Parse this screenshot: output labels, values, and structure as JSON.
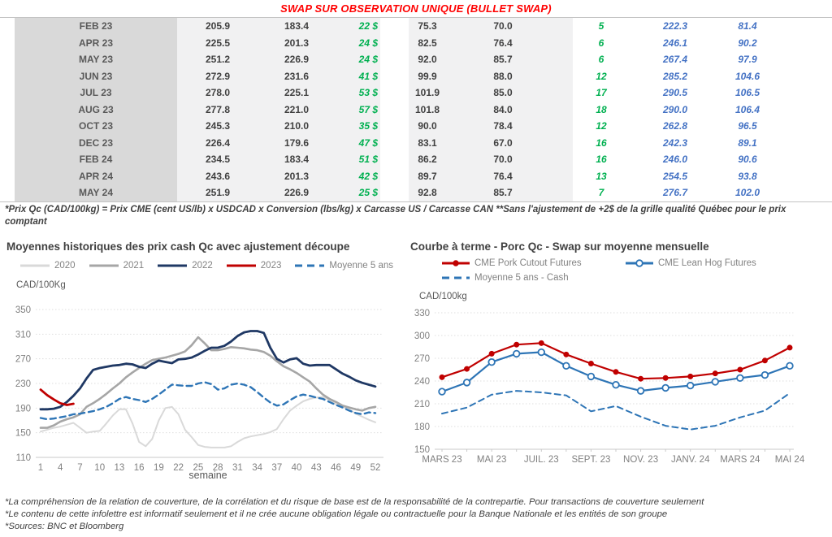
{
  "header": {
    "title": "SWAP SUR OBSERVATION UNIQUE (BULLET SWAP)"
  },
  "table": {
    "rows": [
      [
        "FEB 23",
        "205.9",
        "183.4",
        "22 $",
        "75.3",
        "70.0",
        "5",
        "222.3",
        "81.4"
      ],
      [
        "APR 23",
        "225.5",
        "201.3",
        "24 $",
        "82.5",
        "76.4",
        "6",
        "246.1",
        "90.2"
      ],
      [
        "MAY 23",
        "251.2",
        "226.9",
        "24 $",
        "92.0",
        "85.7",
        "6",
        "267.4",
        "97.9"
      ],
      [
        "JUN 23",
        "272.9",
        "231.6",
        "41 $",
        "99.9",
        "88.0",
        "12",
        "285.2",
        "104.6"
      ],
      [
        "JUL 23",
        "278.0",
        "225.1",
        "53 $",
        "101.9",
        "85.0",
        "17",
        "290.5",
        "106.5"
      ],
      [
        "AUG 23",
        "277.8",
        "221.0",
        "57 $",
        "101.8",
        "84.0",
        "18",
        "290.0",
        "106.4"
      ],
      [
        "OCT 23",
        "245.3",
        "210.0",
        "35 $",
        "90.0",
        "78.4",
        "12",
        "262.8",
        "96.5"
      ],
      [
        "DEC 23",
        "226.4",
        "179.6",
        "47 $",
        "83.1",
        "67.0",
        "16",
        "242.3",
        "89.1"
      ],
      [
        "FEB 24",
        "234.5",
        "183.4",
        "51 $",
        "86.2",
        "70.0",
        "16",
        "246.0",
        "90.6"
      ],
      [
        "APR 24",
        "243.6",
        "201.3",
        "42 $",
        "89.7",
        "76.4",
        "13",
        "254.5",
        "93.8"
      ],
      [
        "MAY 24",
        "251.9",
        "226.9",
        "25 $",
        "92.8",
        "85.7",
        "7",
        "276.7",
        "102.0"
      ]
    ]
  },
  "table_footnote": "*Prix Qc (CAD/100kg) = Prix CME (cent US/lb) x USDCAD x Conversion (lbs/kg) x Carcasse US / Carcasse CAN **Sans l'ajustement de +2$ de la grille qualité Québec pour le prix comptant",
  "chart_data": [
    {
      "type": "line",
      "title": "Moyennes historiques des prix cash Qc avec ajustement découpe",
      "ylabel": "CAD/100Kg",
      "xlabel": "semaine",
      "ylim": [
        110,
        350
      ],
      "yticks": [
        110,
        150,
        190,
        230,
        270,
        310,
        350
      ],
      "x_count": 52,
      "xticks": [
        1,
        4,
        7,
        10,
        13,
        16,
        19,
        22,
        25,
        28,
        31,
        34,
        37,
        40,
        43,
        46,
        49,
        52
      ],
      "grid": "dashed",
      "legend_position": "top",
      "series": [
        {
          "name": "2020",
          "color": "#d9d9d9",
          "width": 2,
          "values": [
            152,
            155,
            158,
            160,
            163,
            166,
            158,
            150,
            152,
            153,
            165,
            178,
            188,
            188,
            165,
            135,
            128,
            140,
            170,
            190,
            192,
            180,
            155,
            143,
            130,
            127,
            126,
            126,
            126,
            128,
            135,
            141,
            144,
            146,
            148,
            151,
            156,
            172,
            186,
            194,
            201,
            205,
            207,
            208,
            203,
            196,
            192,
            188,
            181,
            176,
            171,
            167
          ]
        },
        {
          "name": "2021",
          "color": "#a6a6a6",
          "width": 2.6,
          "values": [
            158,
            158,
            162,
            168,
            172,
            175,
            180,
            192,
            198,
            205,
            213,
            222,
            230,
            240,
            248,
            255,
            262,
            268,
            270,
            272,
            275,
            278,
            282,
            292,
            305,
            295,
            284,
            284,
            286,
            289,
            288,
            287,
            285,
            284,
            281,
            275,
            266,
            258,
            253,
            247,
            240,
            233,
            222,
            212,
            205,
            200,
            194,
            191,
            188,
            186,
            190,
            192
          ]
        },
        {
          "name": "2022",
          "color": "#1f3864",
          "width": 2.8,
          "values": [
            188,
            188,
            189,
            192,
            200,
            210,
            222,
            238,
            252,
            255,
            257,
            259,
            260,
            262,
            261,
            257,
            255,
            262,
            267,
            265,
            263,
            269,
            270,
            272,
            277,
            283,
            288,
            288,
            291,
            298,
            307,
            313,
            315,
            315,
            312,
            288,
            270,
            264,
            269,
            271,
            262,
            259,
            260,
            260,
            260,
            253,
            246,
            241,
            235,
            231,
            228,
            225
          ]
        },
        {
          "name": "2023",
          "color": "#c00000",
          "width": 2.8,
          "values": [
            220,
            211,
            204,
            198,
            195,
            197
          ]
        },
        {
          "name": "Moyenne 5 ans",
          "color": "#2e75b6",
          "width": 2.4,
          "dash": true,
          "values": [
            174,
            172,
            173,
            175,
            177,
            180,
            181,
            183,
            185,
            188,
            192,
            198,
            205,
            208,
            205,
            203,
            200,
            205,
            212,
            220,
            228,
            227,
            226,
            226,
            230,
            232,
            229,
            220,
            222,
            228,
            230,
            228,
            224,
            216,
            207,
            199,
            194,
            196,
            203,
            209,
            212,
            210,
            207,
            205,
            200,
            195,
            191,
            186,
            182,
            180,
            183,
            182
          ]
        }
      ]
    },
    {
      "type": "line",
      "title": "Courbe à terme - Porc Qc - Swap sur moyenne mensuelle",
      "ylabel": "CAD/100kg",
      "ylim": [
        150,
        330
      ],
      "yticks": [
        150,
        180,
        210,
        240,
        270,
        300,
        330
      ],
      "x_count": 15,
      "xtick_positions": [
        0,
        2,
        4,
        6,
        8,
        10,
        12,
        14
      ],
      "xtick_labels": [
        "MARS 23",
        "MAI 23",
        "JUIL. 23",
        "SEPT. 23",
        "NOV. 23",
        "JANV. 24",
        "MARS 24",
        "MAI 24"
      ],
      "grid": "dashed",
      "legend_position": "top",
      "series": [
        {
          "name": "CME Pork Cutout Futures",
          "color": "#c00000",
          "width": 2.2,
          "marker": "filled",
          "values": [
            245,
            256,
            276,
            288,
            290,
            275,
            263,
            252,
            243,
            244,
            246,
            250,
            255,
            267,
            284
          ]
        },
        {
          "name": "CME Lean Hog Futures",
          "color": "#2e75b6",
          "width": 2.2,
          "marker": "open",
          "values": [
            226,
            238,
            265,
            276,
            278,
            260,
            246,
            235,
            227,
            231,
            234,
            239,
            244,
            248,
            260
          ]
        },
        {
          "name": "Moyenne 5 ans - Cash",
          "color": "#2e75b6",
          "width": 2,
          "dash": true,
          "values": [
            197,
            205,
            222,
            227,
            225,
            221,
            200,
            207,
            193,
            181,
            176,
            181,
            192,
            201,
            224
          ]
        }
      ]
    }
  ],
  "footer": {
    "lines": [
      "*La compréhension de la relation de couverture, de la corrélation et du risque de base est de la responsabilité de la contrepartie. Pour transactions de couverture seulement",
      "*Le contenu de cette infolettre est informatif seulement et il ne crée aucune obligation légale ou contractuelle pour la Banque Nationale et les entités de son groupe",
      "*Sources: BNC et Bloomberg"
    ]
  }
}
